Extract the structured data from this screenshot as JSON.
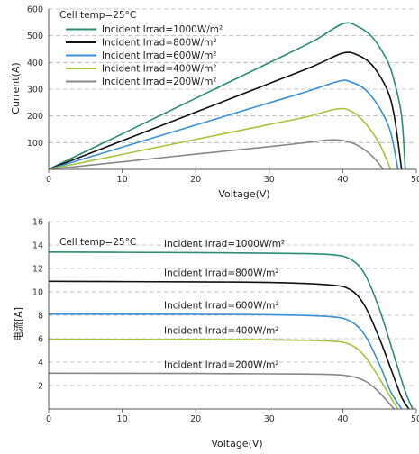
{
  "chart_data": [
    {
      "type": "line",
      "xlabel": "Voltage(V)",
      "ylabel": "Current(A)",
      "xlim": [
        0,
        50
      ],
      "ylim": [
        0,
        600
      ],
      "xticks": [
        "0",
        "10",
        "20",
        "30",
        "40",
        "50"
      ],
      "yticks": [
        "100",
        "200",
        "300",
        "400",
        "500",
        "600"
      ],
      "grid": "horizontal dashed",
      "legend_position": "top-left",
      "annotation": "Cell temp=25°C",
      "series": [
        {
          "name": "Incident Irrad=1000W/m²",
          "color": "#2e8b74",
          "x": [
            0,
            10,
            20,
            30,
            36,
            40,
            42,
            44,
            46,
            47,
            48,
            48.5
          ],
          "y": [
            0,
            133,
            266,
            399,
            480,
            545,
            535,
            495,
            410,
            330,
            200,
            0
          ]
        },
        {
          "name": "Incident Irrad=800W/m²",
          "color": "#111111",
          "x": [
            0,
            10,
            20,
            30,
            36,
            40,
            42,
            44,
            46,
            47,
            48
          ],
          "y": [
            0,
            107,
            214,
            321,
            386,
            435,
            428,
            390,
            300,
            200,
            0
          ]
        },
        {
          "name": "Incident Irrad=600W/m²",
          "color": "#3a8fd6",
          "x": [
            0,
            10,
            20,
            30,
            35,
            39.5,
            41,
            43,
            45,
            46.5,
            47.5
          ],
          "y": [
            0,
            83,
            166,
            249,
            290,
            330,
            328,
            300,
            230,
            140,
            0
          ]
        },
        {
          "name": "Incident Irrad=400W/m²",
          "color": "#a6c43a",
          "x": [
            0,
            10,
            20,
            30,
            35,
            39,
            41,
            43,
            45,
            46.5
          ],
          "y": [
            0,
            56,
            112,
            168,
            196,
            225,
            220,
            175,
            95,
            0
          ]
        },
        {
          "name": "Incident Irrad=200W/m²",
          "color": "#888888",
          "x": [
            0,
            10,
            20,
            30,
            35,
            38,
            40,
            42,
            44,
            45.5
          ],
          "y": [
            0,
            28,
            57,
            85,
            100,
            110,
            108,
            90,
            50,
            0
          ]
        }
      ]
    },
    {
      "type": "line",
      "xlabel": "Voltage(V)",
      "ylabel": "电流[A]",
      "xlim": [
        0,
        50
      ],
      "ylim": [
        0,
        16
      ],
      "xticks": [
        "0",
        "10",
        "20",
        "30",
        "40",
        "50"
      ],
      "yticks": [
        "2",
        "4",
        "6",
        "8",
        "10",
        "12",
        "14",
        "16"
      ],
      "grid": "horizontal dashed",
      "annotation": "Cell temp=25°C",
      "series": [
        {
          "name": "Incident Irrad=1000W/m²",
          "color": "#2e8b74",
          "x": [
            0,
            20,
            30,
            38,
            41,
            43,
            45,
            47,
            48.5,
            49.5
          ],
          "y": [
            13.4,
            13.35,
            13.3,
            13.2,
            12.8,
            11.5,
            8.5,
            4.5,
            1.5,
            0
          ]
        },
        {
          "name": "Incident Irrad=800W/m²",
          "color": "#111111",
          "x": [
            0,
            20,
            30,
            38,
            41,
            43,
            45,
            46.5,
            48,
            49
          ],
          "y": [
            10.9,
            10.85,
            10.8,
            10.6,
            10.2,
            8.8,
            6.0,
            3.5,
            1.0,
            0
          ]
        },
        {
          "name": "Incident Irrad=600W/m²",
          "color": "#3a8fd6",
          "x": [
            0,
            20,
            30,
            38,
            41,
            43,
            45,
            46.5,
            48
          ],
          "y": [
            8.1,
            8.08,
            8.05,
            7.9,
            7.5,
            6.3,
            3.8,
            1.5,
            0
          ]
        },
        {
          "name": "Incident Irrad=400W/m²",
          "color": "#a6c43a",
          "x": [
            0,
            20,
            30,
            38,
            41,
            43,
            45,
            46.5,
            47.5
          ],
          "y": [
            5.95,
            5.93,
            5.9,
            5.8,
            5.5,
            4.5,
            2.6,
            1.0,
            0
          ]
        },
        {
          "name": "Incident Irrad=200W/m²",
          "color": "#888888",
          "x": [
            0,
            20,
            30,
            38,
            41,
            43,
            44.5,
            46,
            47
          ],
          "y": [
            3.05,
            3.03,
            3.0,
            2.95,
            2.8,
            2.4,
            1.7,
            0.7,
            0
          ]
        }
      ]
    }
  ]
}
